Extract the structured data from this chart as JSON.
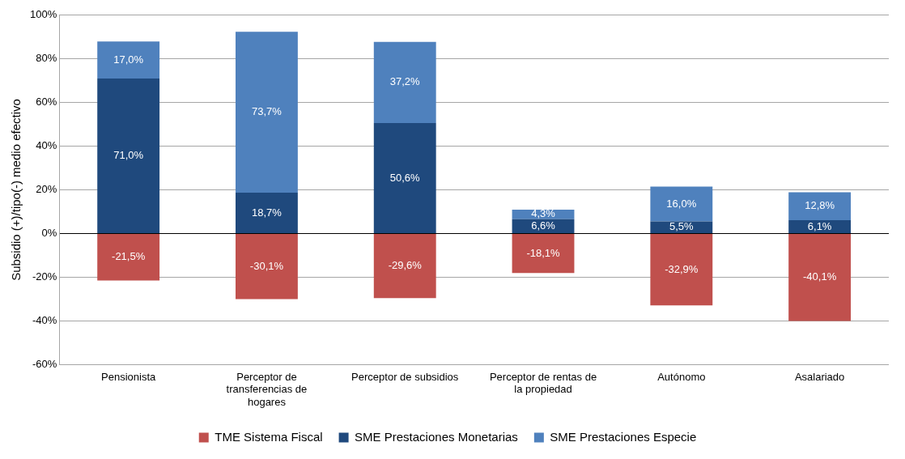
{
  "chart_data": {
    "type": "bar",
    "stacked": true,
    "ylabel": "Subsidio (+)/tipo(-) medio efectivo",
    "categories": [
      "Pensionista",
      "Perceptor de transferencias de hogares",
      "Perceptor de subsidios",
      "Perceptor de rentas de la propiedad",
      "Autónomo",
      "Asalariado"
    ],
    "series": [
      {
        "name": "TME Sistema Fiscal",
        "color": "#c0504d",
        "values": [
          -21.5,
          -30.1,
          -29.6,
          -18.1,
          -32.9,
          -40.1
        ],
        "value_labels": [
          "-21,5%",
          "-30,1%",
          "-29,6%",
          "-18,1%",
          "-32,9%",
          "-40,1%"
        ]
      },
      {
        "name": "SME Prestaciones Monetarias",
        "color": "#1f497d",
        "values": [
          71.0,
          18.7,
          50.6,
          6.6,
          5.5,
          6.1
        ],
        "value_labels": [
          "71,0%",
          "18,7%",
          "50,6%",
          "6,6%",
          "5,5%",
          "6,1%"
        ]
      },
      {
        "name": "SME Prestaciones Especie",
        "color": "#4f81bd",
        "values": [
          17.0,
          73.7,
          37.2,
          4.3,
          16.0,
          12.8
        ],
        "value_labels": [
          "17,0%",
          "73,7%",
          "37,2%",
          "4,3%",
          "16,0%",
          "12,8%"
        ]
      }
    ],
    "ylim": [
      -60,
      100
    ],
    "yticks": [
      {
        "value": -60,
        "label": "-60%"
      },
      {
        "value": -40,
        "label": "-40%"
      },
      {
        "value": -20,
        "label": "-20%"
      },
      {
        "value": 0,
        "label": "0%"
      },
      {
        "value": 20,
        "label": "20%"
      },
      {
        "value": 40,
        "label": "40%"
      },
      {
        "value": 60,
        "label": "60%"
      },
      {
        "value": 80,
        "label": "80%"
      },
      {
        "value": 100,
        "label": "100%"
      }
    ],
    "grid": "y",
    "legend": "bottom"
  }
}
